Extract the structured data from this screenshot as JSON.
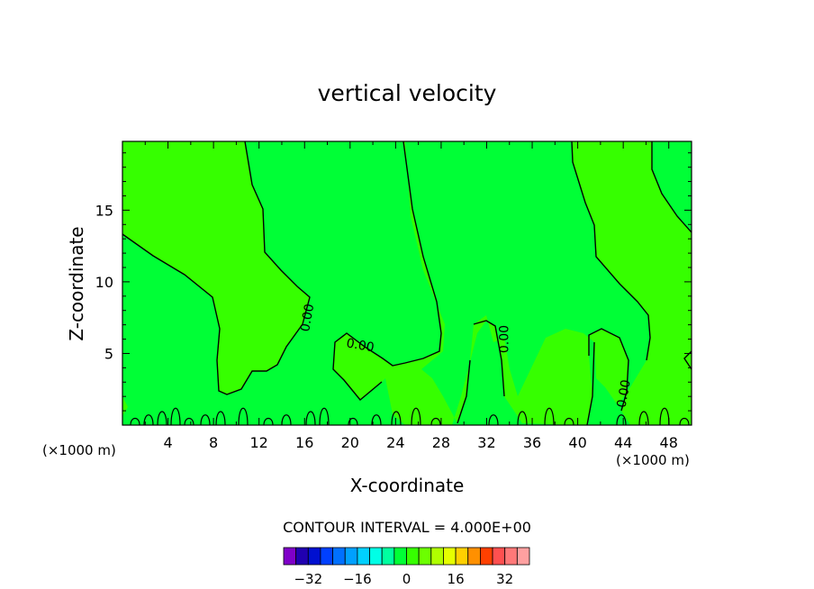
{
  "chart_data": {
    "type": "heatmap",
    "title": "vertical velocity",
    "xlabel": "X-coordinate",
    "ylabel": "Z-coordinate",
    "x_unit_left": "(×1000 m)",
    "x_unit_right": "(×1000 m)",
    "xlim": [
      0,
      50
    ],
    "ylim": [
      0,
      19.8
    ],
    "xticks": [
      4,
      8,
      12,
      16,
      20,
      24,
      28,
      32,
      36,
      40,
      44,
      48
    ],
    "yticks": [
      5,
      10,
      15
    ],
    "contour_interval_text": "CONTOUR INTERVAL = 4.000E+00",
    "zero_contour_labels": [
      {
        "text": "0.00",
        "x": 16.2,
        "y": 7.5,
        "angle": -80
      },
      {
        "text": "0.00",
        "x": 20.9,
        "y": 5.6,
        "angle": 10
      },
      {
        "text": "0.00",
        "x": 33.5,
        "y": 6.0,
        "angle": -90
      },
      {
        "text": "0.00",
        "x": 44.0,
        "y": 2.2,
        "angle": -80
      }
    ],
    "field_regions": [
      {
        "value": 0,
        "color": "#00ff36"
      },
      {
        "value": 4,
        "color": "#36ff00"
      }
    ],
    "colorbar": {
      "levels": [
        -36,
        -32,
        -28,
        -24,
        -20,
        -16,
        -12,
        -8,
        -4,
        0,
        4,
        8,
        12,
        16,
        20,
        24,
        28,
        32,
        36
      ],
      "colors": [
        "#7f00c8",
        "#2000b0",
        "#0010d0",
        "#0040ff",
        "#0070ff",
        "#00a0ff",
        "#00d0ff",
        "#00ffe6",
        "#00ffa0",
        "#00ff36",
        "#36ff00",
        "#6cff00",
        "#b0ff00",
        "#e6ff00",
        "#ffd000",
        "#ff9000",
        "#ff4000",
        "#ff5050",
        "#ff7878",
        "#ffa0a0"
      ],
      "tick_labels": [
        "−32",
        "−16",
        "0",
        "16",
        "32"
      ],
      "tick_values": [
        -32,
        -16,
        0,
        16,
        32
      ]
    }
  }
}
